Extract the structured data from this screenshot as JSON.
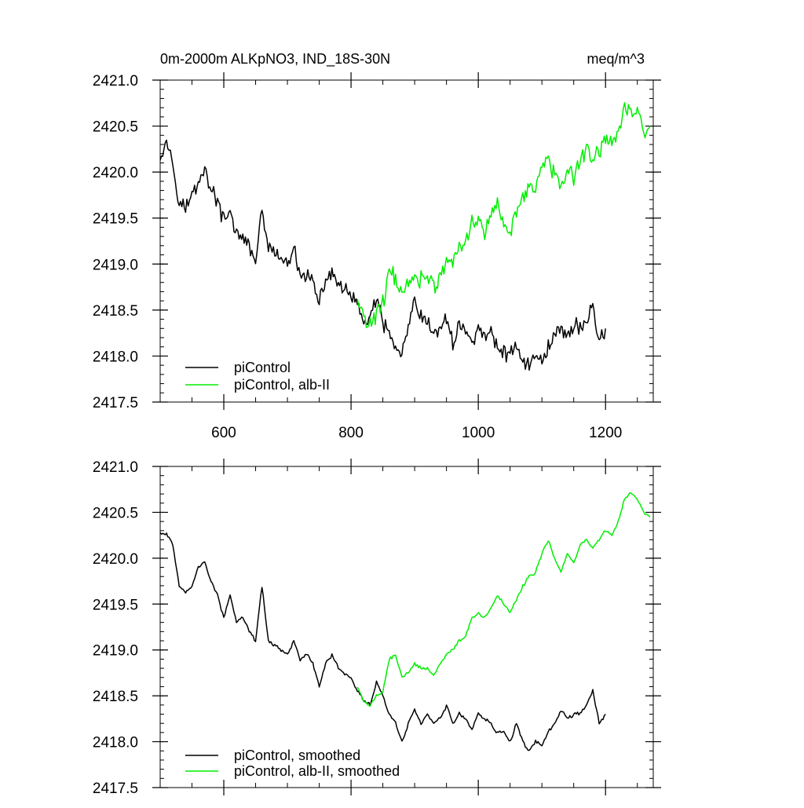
{
  "figure": {
    "title_left": "0m-2000m ALKpNO3, IND_18S-30N",
    "title_right": "meq/m^3"
  },
  "colors": {
    "picontrol": "#000000",
    "alb": "#00ee00",
    "axis": "#000000"
  },
  "chart_data": [
    {
      "type": "line",
      "title": "0m-2000m ALKpNO3, IND_18S-30N",
      "units": "meq/m^3",
      "xlim": [
        500,
        1275
      ],
      "ylim": [
        2417.5,
        2421.0
      ],
      "xticks": [
        600,
        800,
        1000,
        1200
      ],
      "xticklabels": [
        "600",
        "800",
        "1000",
        "1200"
      ],
      "yticks": [
        2417.5,
        2418.0,
        2418.5,
        2419.0,
        2419.5,
        2420.0,
        2420.5,
        2421.0
      ],
      "yticklabels": [
        "2417.5",
        "2418.0",
        "2418.5",
        "2419.0",
        "2419.5",
        "2420.0",
        "2420.5",
        "2421.0"
      ],
      "legend_position": "bottom-left",
      "series": [
        {
          "name": "piControl",
          "color": "#000000",
          "x": [
            500,
            510,
            520,
            530,
            540,
            550,
            560,
            570,
            580,
            590,
            600,
            610,
            620,
            630,
            640,
            650,
            660,
            670,
            680,
            690,
            700,
            710,
            720,
            730,
            740,
            750,
            760,
            770,
            780,
            790,
            800,
            810,
            820,
            830,
            840,
            850,
            860,
            870,
            880,
            890,
            900,
            910,
            920,
            930,
            940,
            950,
            960,
            970,
            980,
            990,
            1000,
            1010,
            1020,
            1030,
            1040,
            1050,
            1060,
            1070,
            1080,
            1090,
            1100,
            1110,
            1120,
            1130,
            1140,
            1150,
            1160,
            1170,
            1180,
            1190,
            1200
          ],
          "y": [
            2420.2,
            2420.35,
            2420.1,
            2419.7,
            2419.6,
            2419.75,
            2419.9,
            2420.05,
            2419.8,
            2419.7,
            2419.45,
            2419.55,
            2419.35,
            2419.25,
            2419.2,
            2419.05,
            2419.55,
            2419.2,
            2419.1,
            2419.05,
            2419.0,
            2419.15,
            2418.85,
            2418.9,
            2418.8,
            2418.55,
            2418.85,
            2418.9,
            2418.8,
            2418.7,
            2418.65,
            2418.55,
            2418.35,
            2418.45,
            2418.6,
            2418.35,
            2418.25,
            2418.1,
            2418.0,
            2418.3,
            2418.6,
            2418.4,
            2418.35,
            2418.25,
            2418.3,
            2418.4,
            2418.15,
            2418.35,
            2418.3,
            2418.1,
            2418.35,
            2418.2,
            2418.25,
            2418.1,
            2418.05,
            2418.0,
            2418.15,
            2417.95,
            2417.9,
            2418.0,
            2417.95,
            2418.1,
            2418.25,
            2418.3,
            2418.2,
            2418.35,
            2418.3,
            2418.4,
            2418.55,
            2418.15,
            2418.3
          ],
          "noise": 0.11
        },
        {
          "name": "piControl, alb-II",
          "color": "#00ee00",
          "x": [
            810,
            820,
            830,
            840,
            850,
            860,
            870,
            880,
            890,
            900,
            910,
            920,
            930,
            940,
            950,
            960,
            970,
            980,
            990,
            1000,
            1010,
            1020,
            1030,
            1040,
            1050,
            1060,
            1070,
            1080,
            1090,
            1100,
            1110,
            1120,
            1130,
            1140,
            1150,
            1160,
            1170,
            1180,
            1190,
            1200,
            1210,
            1220,
            1230,
            1240,
            1250,
            1260,
            1270
          ],
          "y": [
            2418.6,
            2418.4,
            2418.35,
            2418.45,
            2418.55,
            2418.95,
            2418.85,
            2418.7,
            2418.75,
            2418.85,
            2418.85,
            2418.9,
            2418.75,
            2418.85,
            2419.0,
            2419.05,
            2419.15,
            2419.25,
            2419.45,
            2419.5,
            2419.35,
            2419.55,
            2419.65,
            2419.5,
            2419.35,
            2419.55,
            2419.75,
            2419.85,
            2419.8,
            2420.05,
            2420.15,
            2419.95,
            2419.85,
            2420.1,
            2419.9,
            2420.15,
            2420.25,
            2420.15,
            2420.25,
            2420.35,
            2420.3,
            2420.45,
            2420.7,
            2420.65,
            2420.65,
            2420.45,
            2420.5
          ],
          "noise": 0.12
        }
      ]
    },
    {
      "type": "line",
      "xlim": [
        500,
        1275
      ],
      "ylim": [
        2417.5,
        2421.0
      ],
      "xticks": [
        600,
        800,
        1000,
        1200
      ],
      "xticklabels": [],
      "yticks": [
        2417.5,
        2418.0,
        2418.5,
        2419.0,
        2419.5,
        2420.0,
        2420.5,
        2421.0
      ],
      "yticklabels": [
        "2417.5",
        "2418.0",
        "2418.5",
        "2419.0",
        "2419.5",
        "2420.0",
        "2420.5",
        "2421.0"
      ],
      "legend_position": "bottom-left",
      "series": [
        {
          "name": "piControl, smoothed",
          "color": "#000000",
          "x": [
            500,
            510,
            520,
            530,
            540,
            550,
            560,
            570,
            580,
            590,
            600,
            610,
            620,
            630,
            640,
            650,
            660,
            670,
            680,
            690,
            700,
            710,
            720,
            730,
            740,
            750,
            760,
            770,
            780,
            790,
            800,
            810,
            820,
            830,
            840,
            850,
            860,
            870,
            880,
            890,
            900,
            910,
            920,
            930,
            940,
            950,
            960,
            970,
            980,
            990,
            1000,
            1010,
            1020,
            1030,
            1040,
            1050,
            1060,
            1070,
            1080,
            1090,
            1100,
            1110,
            1120,
            1130,
            1140,
            1150,
            1160,
            1170,
            1180,
            1190,
            1200
          ],
          "y": [
            2420.28,
            2420.25,
            2420.15,
            2419.7,
            2419.62,
            2419.7,
            2419.9,
            2419.95,
            2419.75,
            2419.6,
            2419.35,
            2419.6,
            2419.3,
            2419.35,
            2419.2,
            2419.1,
            2419.7,
            2419.1,
            2419.05,
            2419.0,
            2418.95,
            2419.1,
            2418.9,
            2418.95,
            2418.85,
            2418.6,
            2418.85,
            2418.95,
            2418.8,
            2418.75,
            2418.7,
            2418.55,
            2418.45,
            2418.4,
            2418.65,
            2418.5,
            2418.3,
            2418.2,
            2418.0,
            2418.2,
            2418.35,
            2418.2,
            2418.3,
            2418.2,
            2418.25,
            2418.4,
            2418.2,
            2418.3,
            2418.25,
            2418.15,
            2418.3,
            2418.25,
            2418.2,
            2418.1,
            2418.1,
            2418.0,
            2418.2,
            2418.0,
            2417.9,
            2418.0,
            2417.95,
            2418.1,
            2418.2,
            2418.35,
            2418.25,
            2418.3,
            2418.3,
            2418.4,
            2418.55,
            2418.2,
            2418.3
          ],
          "noise": 0.025
        },
        {
          "name": "piControl, alb-II, smoothed",
          "color": "#00ee00",
          "x": [
            810,
            820,
            830,
            840,
            850,
            860,
            870,
            880,
            890,
            900,
            910,
            920,
            930,
            940,
            950,
            960,
            970,
            980,
            990,
            1000,
            1010,
            1020,
            1030,
            1040,
            1050,
            1060,
            1070,
            1080,
            1090,
            1100,
            1110,
            1120,
            1130,
            1140,
            1150,
            1160,
            1170,
            1180,
            1190,
            1200,
            1210,
            1220,
            1230,
            1240,
            1250,
            1260,
            1270
          ],
          "y": [
            2418.6,
            2418.45,
            2418.38,
            2418.5,
            2418.55,
            2418.9,
            2418.95,
            2418.7,
            2418.75,
            2418.85,
            2418.8,
            2418.8,
            2418.72,
            2418.85,
            2418.95,
            2419.0,
            2419.1,
            2419.15,
            2419.35,
            2419.4,
            2419.35,
            2419.45,
            2419.6,
            2419.5,
            2419.4,
            2419.55,
            2419.7,
            2419.8,
            2419.85,
            2420.05,
            2420.2,
            2420.0,
            2419.85,
            2420.05,
            2419.95,
            2420.15,
            2420.2,
            2420.1,
            2420.2,
            2420.3,
            2420.25,
            2420.4,
            2420.65,
            2420.72,
            2420.65,
            2420.5,
            2420.45
          ],
          "noise": 0.02
        }
      ]
    }
  ]
}
